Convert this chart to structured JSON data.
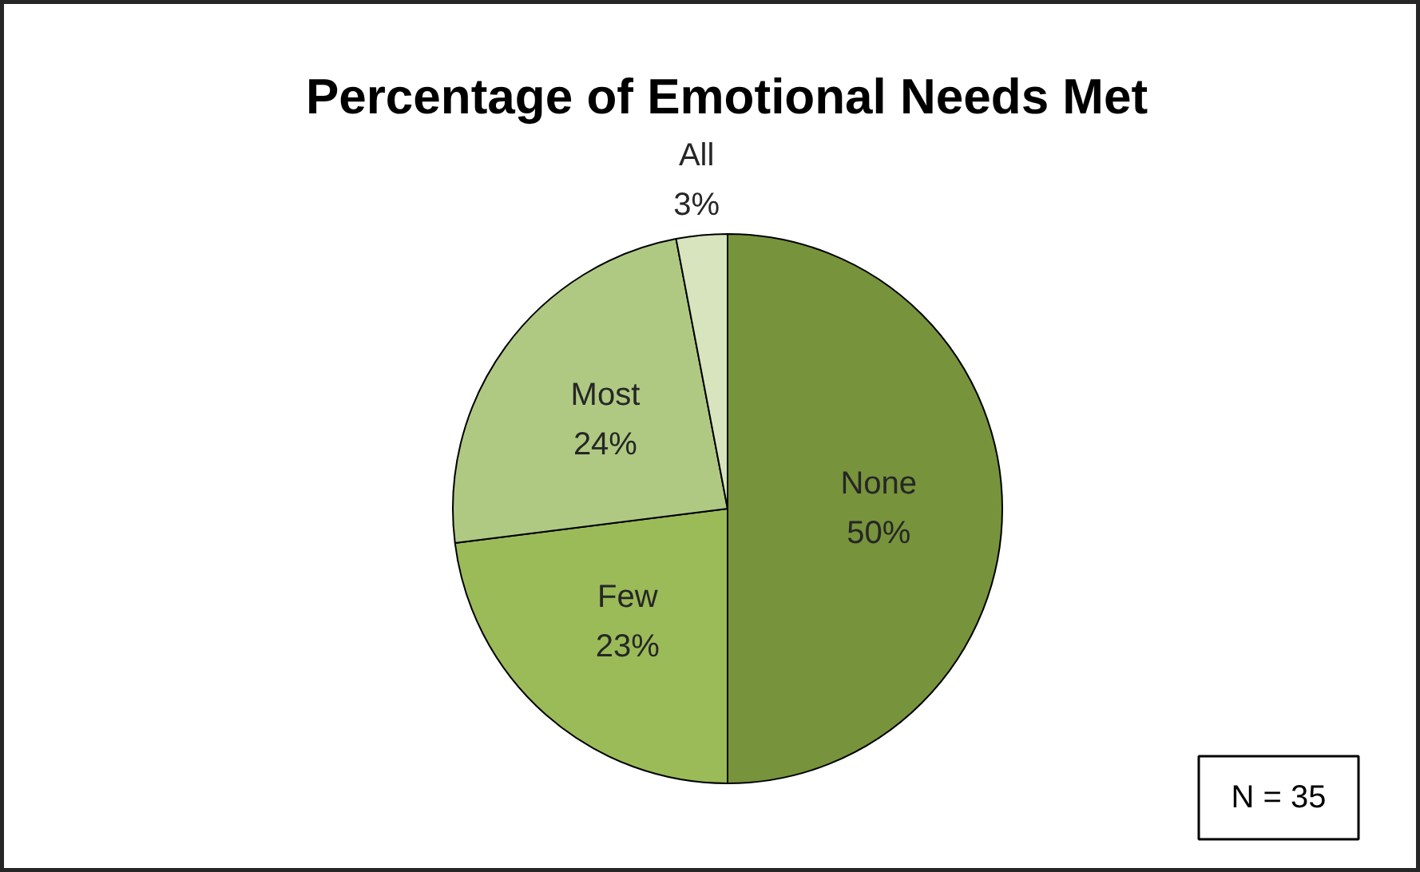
{
  "chart_data": {
    "type": "pie",
    "title": "Percentage of Emotional Needs Met",
    "categories": [
      "None",
      "Few",
      "Most",
      "All"
    ],
    "values": [
      50,
      23,
      24,
      3
    ],
    "value_labels": [
      "50%",
      "23%",
      "24%",
      "3%"
    ],
    "colors": [
      "#77933c",
      "#9bbb59",
      "#afc983",
      "#d7e4bd"
    ],
    "annotations": [
      "N = 35"
    ]
  }
}
